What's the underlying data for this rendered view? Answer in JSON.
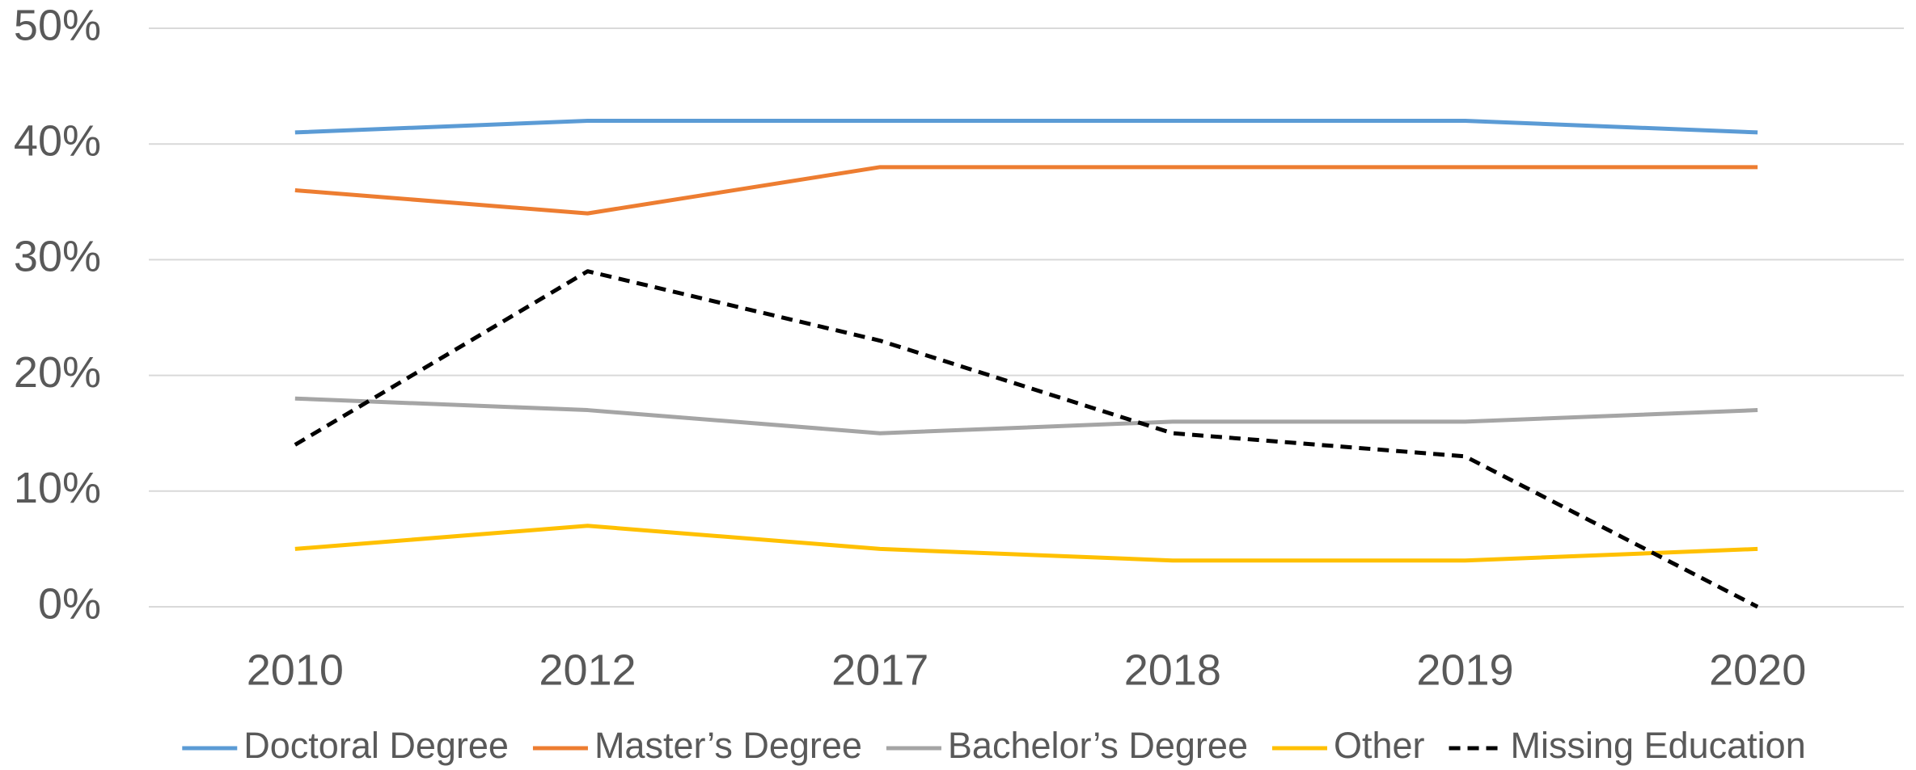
{
  "chart_data": {
    "type": "line",
    "categories": [
      "2010",
      "2012",
      "2017",
      "2018",
      "2019",
      "2020"
    ],
    "series": [
      {
        "name": "Doctoral Degree",
        "color": "#5b9bd5",
        "values": [
          41,
          42,
          42,
          42,
          42,
          41
        ]
      },
      {
        "name": "Master’s Degree",
        "color": "#ed7d31",
        "values": [
          36,
          34,
          38,
          38,
          38,
          38
        ]
      },
      {
        "name": "Bachelor’s Degree",
        "color": "#a5a5a5",
        "values": [
          18,
          17,
          15,
          16,
          16,
          17
        ]
      },
      {
        "name": "Other",
        "color": "#ffc000",
        "values": [
          5,
          7,
          5,
          4,
          4,
          5
        ]
      },
      {
        "name": "Missing Education",
        "color": "#000000",
        "style": "dashed",
        "values": [
          14,
          29,
          23,
          15,
          13,
          0
        ]
      }
    ],
    "ylim": [
      0,
      50
    ],
    "yticks": [
      {
        "value": 0,
        "label": "0%"
      },
      {
        "value": 10,
        "label": "10%"
      },
      {
        "value": 20,
        "label": "20%"
      },
      {
        "value": 30,
        "label": "30%"
      },
      {
        "value": 40,
        "label": "40%"
      },
      {
        "value": 50,
        "label": "50%"
      }
    ],
    "grid": true,
    "legend": "bottom"
  }
}
